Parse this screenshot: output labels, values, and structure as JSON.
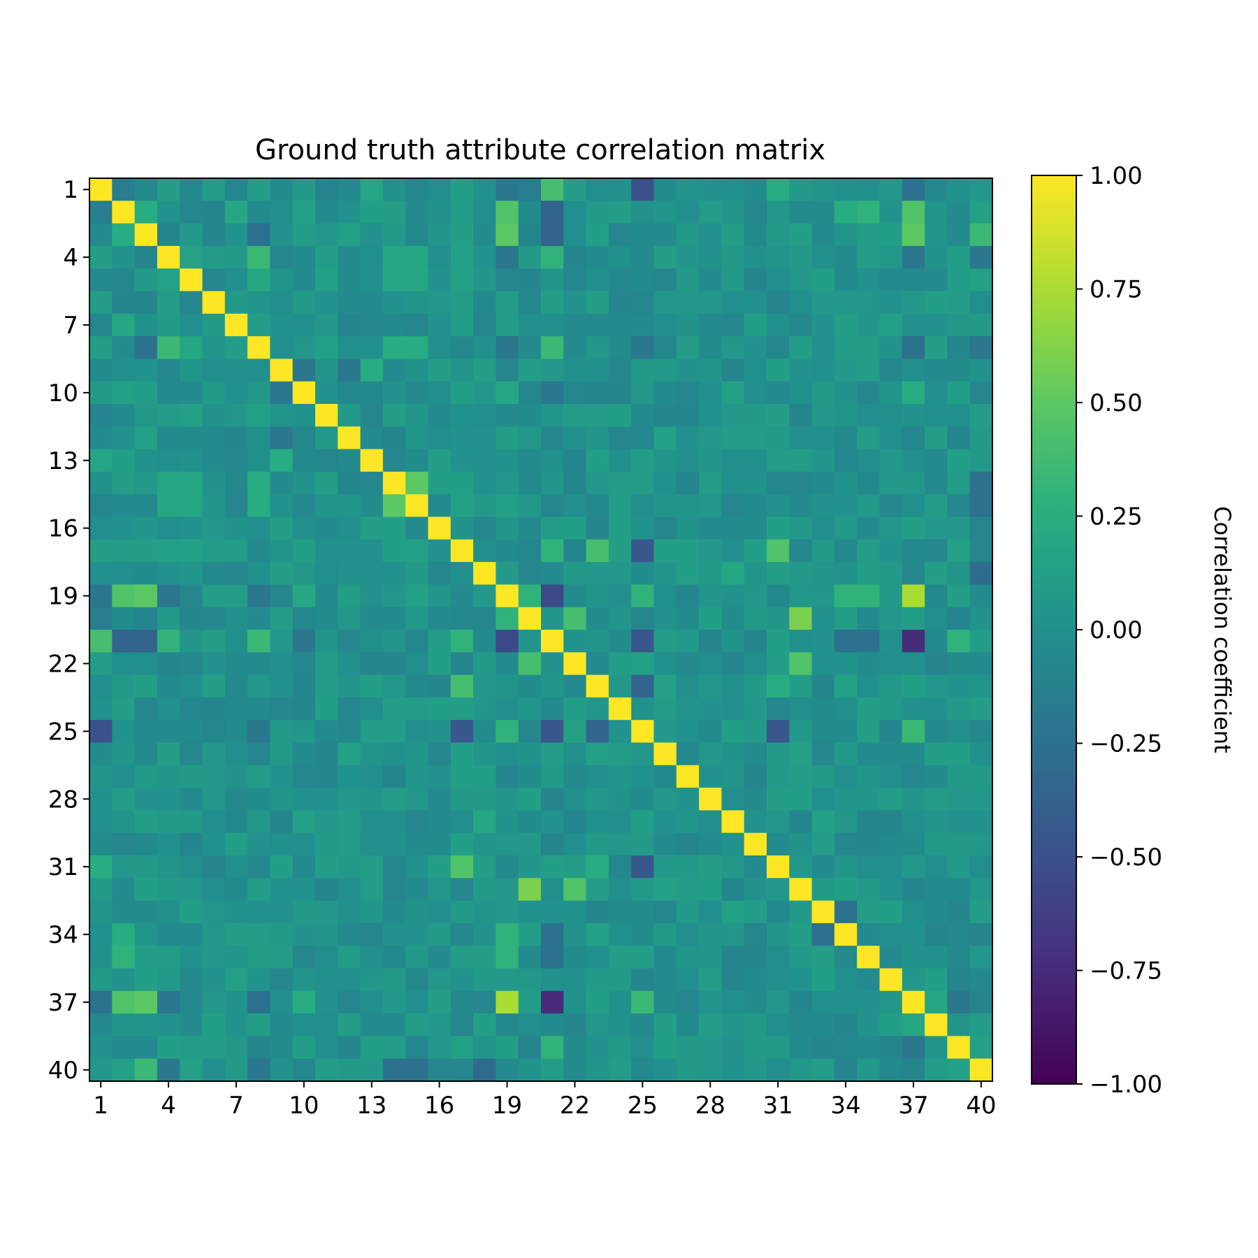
{
  "chart_data": {
    "type": "heatmap",
    "title": "Ground truth attribute correlation matrix",
    "colorbar": {
      "label": "Correlation coefficient",
      "range": [
        -1.0,
        1.0
      ],
      "colormap": "viridis",
      "tick_values": [
        1.0,
        0.75,
        0.5,
        0.25,
        0.0,
        -0.25,
        -0.5,
        -0.75,
        -1.0
      ],
      "tick_labels": [
        "1.00",
        "0.75",
        "0.50",
        "0.25",
        "0.00",
        "−0.25",
        "−0.50",
        "−0.75",
        "−1.00"
      ]
    },
    "x_tick_labels": [
      "1",
      "4",
      "7",
      "10",
      "13",
      "16",
      "19",
      "22",
      "25",
      "28",
      "31",
      "34",
      "37",
      "40"
    ],
    "y_tick_labels": [
      "1",
      "4",
      "7",
      "10",
      "13",
      "16",
      "19",
      "22",
      "25",
      "28",
      "31",
      "34",
      "37",
      "40"
    ],
    "tick_attributes": [
      1,
      4,
      7,
      10,
      13,
      16,
      19,
      22,
      25,
      28,
      31,
      34,
      37,
      40
    ],
    "n": 40,
    "pairs": [
      [
        1,
        2,
        -0.15
      ],
      [
        1,
        3,
        -0.05
      ],
      [
        1,
        4,
        0.12
      ],
      [
        1,
        8,
        0.12
      ],
      [
        1,
        13,
        0.18
      ],
      [
        1,
        17,
        0.12
      ],
      [
        1,
        19,
        -0.2
      ],
      [
        1,
        20,
        -0.15
      ],
      [
        1,
        21,
        0.4
      ],
      [
        1,
        25,
        -0.5
      ],
      [
        1,
        31,
        0.25
      ],
      [
        1,
        37,
        -0.25
      ],
      [
        2,
        3,
        0.25
      ],
      [
        2,
        7,
        0.2
      ],
      [
        2,
        19,
        0.45
      ],
      [
        2,
        21,
        -0.35
      ],
      [
        2,
        34,
        0.25
      ],
      [
        2,
        35,
        0.3
      ],
      [
        2,
        37,
        0.45
      ],
      [
        3,
        8,
        -0.25
      ],
      [
        3,
        19,
        0.5
      ],
      [
        3,
        21,
        -0.35
      ],
      [
        3,
        37,
        0.5
      ],
      [
        3,
        40,
        0.35
      ],
      [
        4,
        8,
        0.35
      ],
      [
        4,
        5,
        0.15
      ],
      [
        4,
        14,
        0.2
      ],
      [
        4,
        15,
        0.2
      ],
      [
        4,
        19,
        -0.2
      ],
      [
        4,
        21,
        0.3
      ],
      [
        4,
        37,
        -0.2
      ],
      [
        4,
        40,
        -0.2
      ],
      [
        5,
        8,
        0.2
      ],
      [
        5,
        14,
        0.2
      ],
      [
        5,
        15,
        0.2
      ],
      [
        7,
        19,
        0.1
      ],
      [
        8,
        14,
        0.25
      ],
      [
        8,
        15,
        0.25
      ],
      [
        8,
        19,
        -0.2
      ],
      [
        8,
        21,
        0.35
      ],
      [
        8,
        25,
        -0.2
      ],
      [
        8,
        37,
        -0.25
      ],
      [
        8,
        40,
        -0.2
      ],
      [
        9,
        13,
        0.25
      ],
      [
        9,
        10,
        -0.2
      ],
      [
        9,
        12,
        -0.2
      ],
      [
        10,
        19,
        0.2
      ],
      [
        10,
        21,
        -0.2
      ],
      [
        10,
        37,
        0.25
      ],
      [
        14,
        15,
        0.5
      ],
      [
        14,
        40,
        -0.25
      ],
      [
        15,
        40,
        -0.25
      ],
      [
        17,
        21,
        0.3
      ],
      [
        17,
        23,
        0.4
      ],
      [
        17,
        25,
        -0.45
      ],
      [
        17,
        31,
        0.45
      ],
      [
        18,
        29,
        0.2
      ],
      [
        18,
        40,
        -0.3
      ],
      [
        19,
        20,
        0.3
      ],
      [
        19,
        21,
        -0.55
      ],
      [
        19,
        25,
        0.3
      ],
      [
        19,
        37,
        0.75
      ],
      [
        19,
        34,
        0.3
      ],
      [
        19,
        35,
        0.3
      ],
      [
        20,
        22,
        0.4
      ],
      [
        20,
        32,
        0.6
      ],
      [
        21,
        25,
        -0.45
      ],
      [
        21,
        37,
        -0.75
      ],
      [
        21,
        34,
        -0.25
      ],
      [
        21,
        35,
        -0.25
      ],
      [
        21,
        39,
        0.3
      ],
      [
        22,
        32,
        0.45
      ],
      [
        23,
        25,
        -0.35
      ],
      [
        23,
        31,
        0.25
      ],
      [
        25,
        31,
        -0.45
      ],
      [
        25,
        37,
        0.35
      ],
      [
        33,
        34,
        -0.25
      ],
      [
        37,
        38,
        0.2
      ],
      [
        37,
        39,
        -0.2
      ]
    ]
  }
}
